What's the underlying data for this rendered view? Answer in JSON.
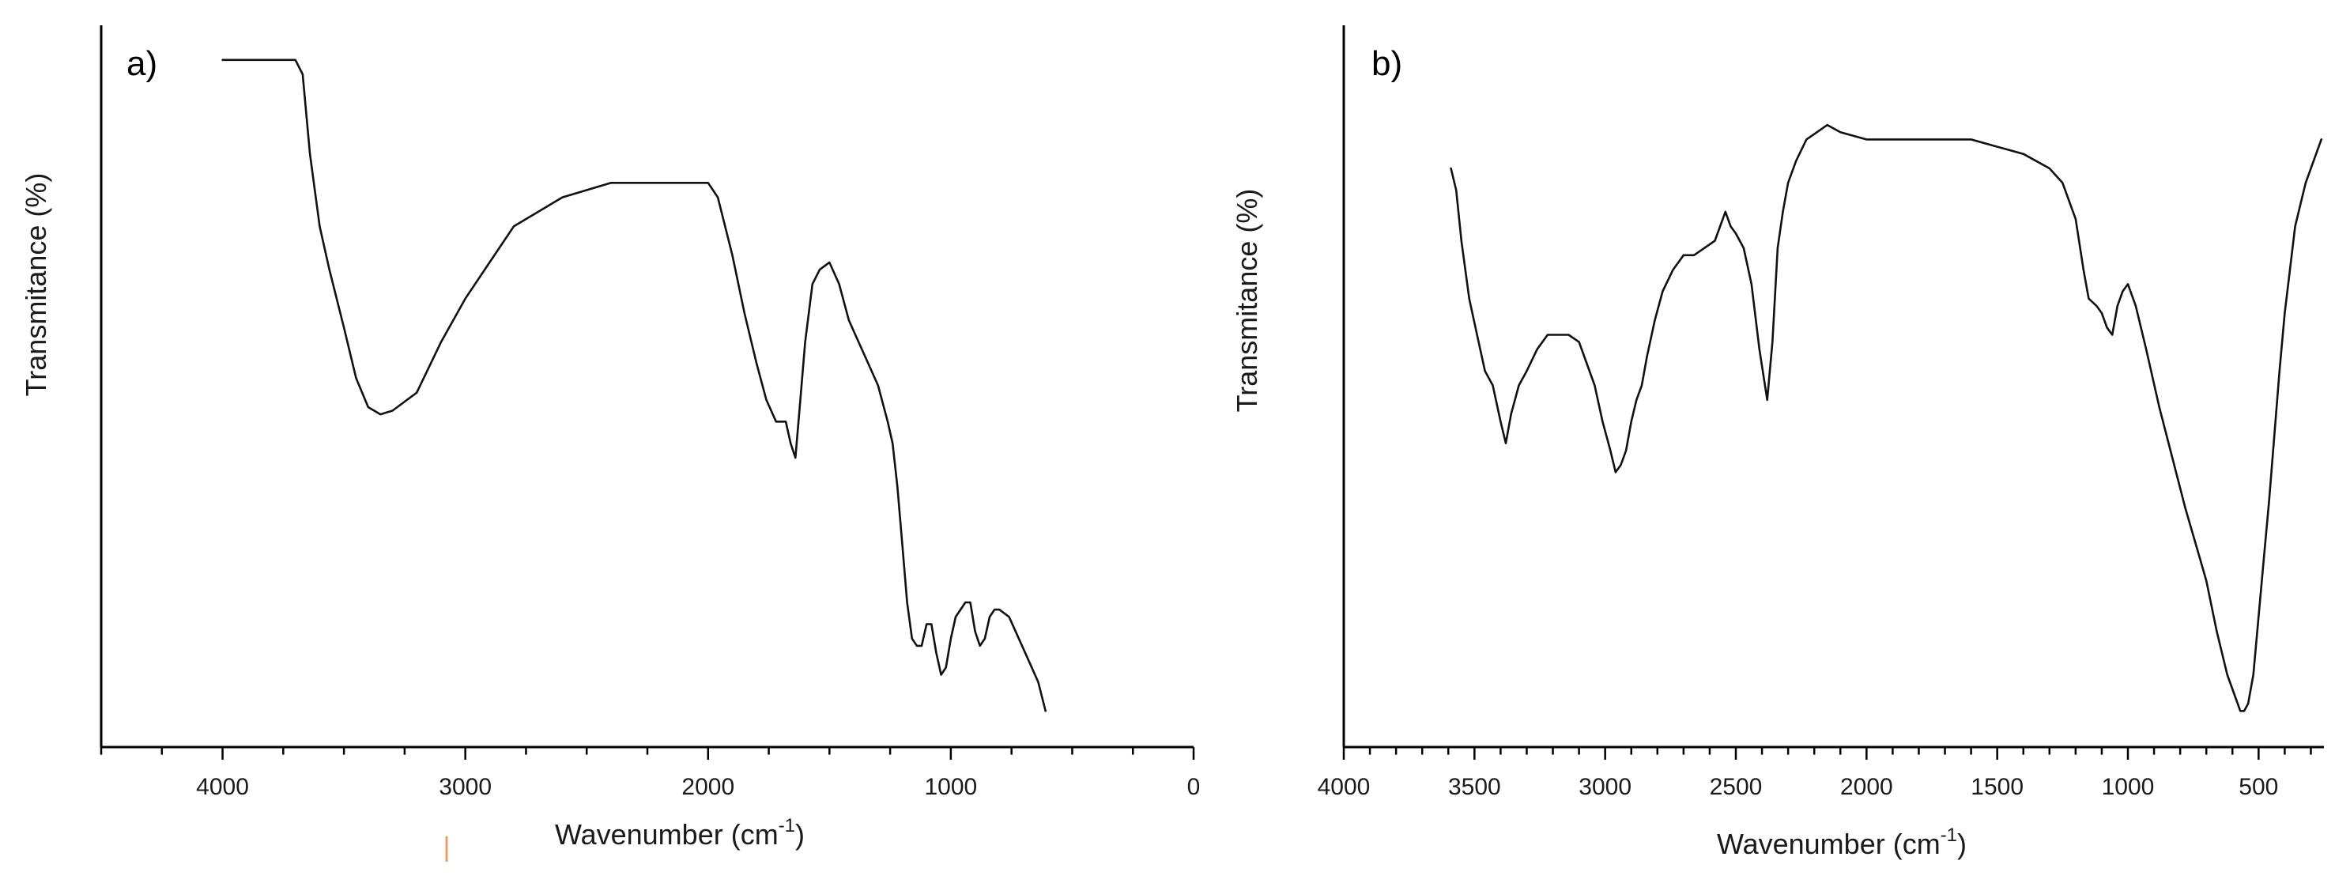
{
  "chart_data": [
    {
      "type": "line",
      "panel_label": "a)",
      "xlabel": "Wavenumber (cm",
      "xlabel_sup": "-1",
      "xlabel_end": ")",
      "ylabel": "Transmitance (%)",
      "xlim": [
        4500,
        0
      ],
      "x_reversed": true,
      "y_ticks_shown": false,
      "ylim": [
        0,
        100
      ],
      "grid": false,
      "x_ticks": [
        4000,
        3000,
        2000,
        1000,
        0
      ],
      "x_tick_labels": [
        "4000",
        "3000",
        "2000",
        "1000",
        "0"
      ],
      "series": [
        {
          "x": [
            4000,
            3700,
            3670,
            3640,
            3600,
            3560,
            3500,
            3450,
            3400,
            3350,
            3300,
            3200,
            3100,
            3000,
            2900,
            2800,
            2600,
            2400,
            2200,
            2000,
            1960,
            1900,
            1850,
            1800,
            1760,
            1720,
            1700,
            1680,
            1660,
            1640,
            1620,
            1600,
            1570,
            1540,
            1500,
            1460,
            1420,
            1380,
            1340,
            1300,
            1260,
            1240,
            1220,
            1200,
            1180,
            1160,
            1140,
            1120,
            1100,
            1080,
            1060,
            1040,
            1020,
            1000,
            980,
            960,
            940,
            920,
            900,
            880,
            860,
            840,
            820,
            800,
            760,
            720,
            680,
            640,
            610
          ],
          "y": [
            95,
            95,
            93,
            82,
            72,
            66,
            58,
            51,
            47,
            46,
            46.5,
            49,
            56,
            62,
            67,
            72,
            76,
            78,
            78,
            78,
            76,
            68,
            60,
            53,
            48,
            45,
            45,
            45,
            42,
            40,
            48,
            56,
            64,
            66,
            67,
            64,
            59,
            56,
            53,
            50,
            45,
            42,
            36,
            28,
            20,
            15,
            14,
            14,
            17,
            17,
            13,
            10,
            11,
            15,
            18,
            19,
            20,
            20,
            16,
            14,
            15,
            18,
            19,
            19,
            18,
            15,
            12,
            9,
            5
          ]
        }
      ]
    },
    {
      "type": "line",
      "panel_label": "b)",
      "xlabel": "Wavenumber (cm",
      "xlabel_sup": "-1",
      "xlabel_end": ")",
      "ylabel": "Transmitance (%)",
      "xlim": [
        4000,
        250
      ],
      "x_reversed": true,
      "y_ticks_shown": false,
      "ylim": [
        0,
        100
      ],
      "grid": false,
      "x_ticks": [
        4000,
        3500,
        3000,
        2500,
        2000,
        1500,
        1000,
        500
      ],
      "x_tick_labels": [
        "4000",
        "3500",
        "3000",
        "2500",
        "2000",
        "1500",
        "1000",
        "500"
      ],
      "series": [
        {
          "x": [
            3590,
            3570,
            3550,
            3520,
            3490,
            3460,
            3430,
            3400,
            3380,
            3360,
            3330,
            3300,
            3260,
            3220,
            3180,
            3140,
            3100,
            3070,
            3040,
            3010,
            2980,
            2960,
            2940,
            2920,
            2900,
            2880,
            2860,
            2840,
            2810,
            2780,
            2740,
            2700,
            2660,
            2620,
            2580,
            2540,
            2520,
            2500,
            2470,
            2440,
            2410,
            2380,
            2360,
            2340,
            2320,
            2300,
            2270,
            2230,
            2190,
            2150,
            2100,
            2000,
            1900,
            1800,
            1700,
            1600,
            1500,
            1400,
            1300,
            1250,
            1200,
            1170,
            1150,
            1120,
            1100,
            1080,
            1060,
            1040,
            1020,
            1000,
            970,
            930,
            880,
            830,
            780,
            740,
            700,
            660,
            620,
            590,
            570,
            555,
            540,
            520,
            500,
            480,
            460,
            440,
            420,
            400,
            380,
            360,
            340,
            320,
            300,
            280,
            260
          ],
          "y": [
            80,
            77,
            70,
            62,
            57,
            52,
            50,
            45,
            42,
            46,
            50,
            52,
            55,
            57,
            57,
            57,
            56,
            53,
            50,
            45,
            41,
            38,
            39,
            41,
            45,
            48,
            50,
            54,
            59,
            63,
            66,
            68,
            68,
            69,
            70,
            74,
            72,
            71,
            69,
            64,
            55,
            48,
            56,
            69,
            74,
            78,
            81,
            84,
            85,
            86,
            85,
            84,
            84,
            84,
            84,
            84,
            83,
            82,
            80,
            78,
            73,
            66,
            62,
            61,
            60,
            58,
            57,
            61,
            63,
            64,
            61,
            55,
            47,
            40,
            33,
            28,
            23,
            16,
            10,
            7,
            5,
            5,
            6,
            10,
            18,
            26,
            34,
            43,
            52,
            60,
            66,
            72,
            75,
            78,
            80,
            82,
            84
          ]
        }
      ]
    }
  ],
  "colors": {
    "line": "#111111",
    "axis": "#000000",
    "marker": "#e8a060"
  }
}
